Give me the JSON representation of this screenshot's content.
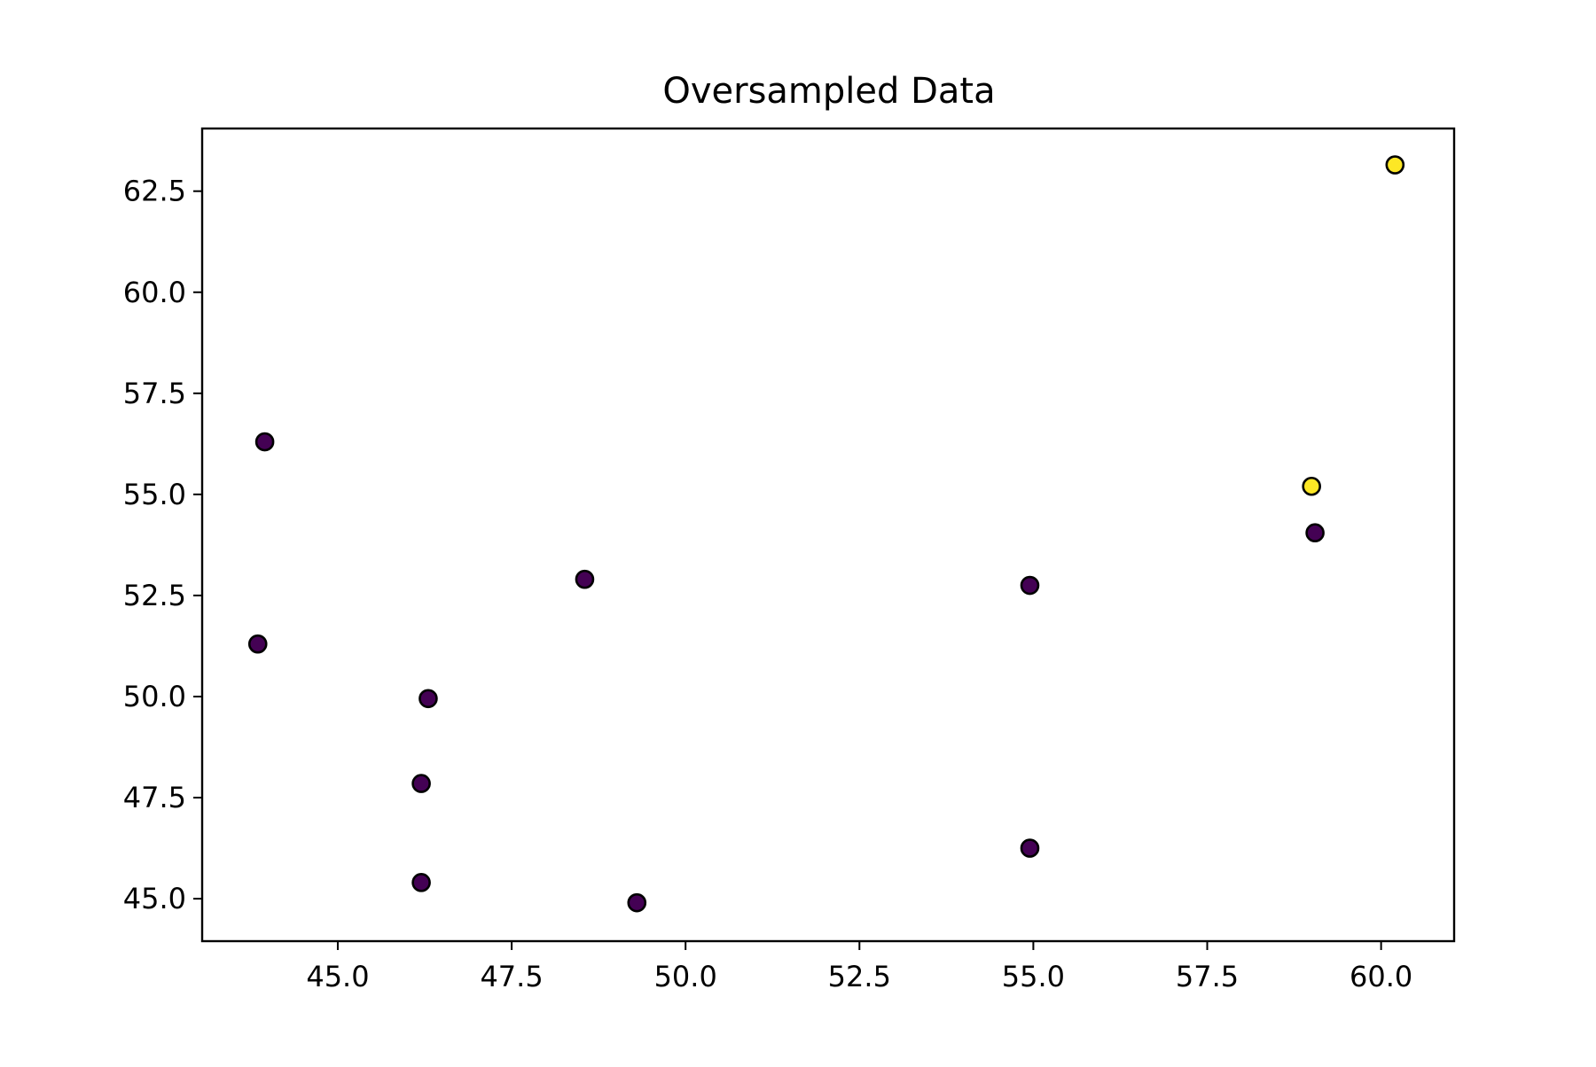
{
  "chart_data": {
    "type": "scatter",
    "title": "Oversampled Data",
    "xlabel": "",
    "ylabel": "",
    "xlim": [
      43.05,
      61.05
    ],
    "ylim": [
      43.95,
      64.05
    ],
    "x_ticks": [
      "45.0",
      "47.5",
      "50.0",
      "52.5",
      "55.0",
      "57.5",
      "60.0"
    ],
    "y_ticks": [
      "45.0",
      "47.5",
      "50.0",
      "52.5",
      "55.0",
      "57.5",
      "60.0",
      "62.5"
    ],
    "grid": false,
    "legend": "none",
    "class_colors": {
      "0": "#440154",
      "1": "#fde725"
    },
    "points": [
      {
        "x": 43.95,
        "y": 56.3,
        "class": 0
      },
      {
        "x": 43.85,
        "y": 51.3,
        "class": 0
      },
      {
        "x": 46.3,
        "y": 49.95,
        "class": 0
      },
      {
        "x": 46.2,
        "y": 47.85,
        "class": 0
      },
      {
        "x": 46.2,
        "y": 45.4,
        "class": 0
      },
      {
        "x": 48.55,
        "y": 52.9,
        "class": 0
      },
      {
        "x": 49.3,
        "y": 44.9,
        "class": 0
      },
      {
        "x": 54.95,
        "y": 52.75,
        "class": 0
      },
      {
        "x": 54.95,
        "y": 46.25,
        "class": 0
      },
      {
        "x": 59.05,
        "y": 54.05,
        "class": 0
      },
      {
        "x": 59.0,
        "y": 55.2,
        "class": 1
      },
      {
        "x": 60.2,
        "y": 63.15,
        "class": 1
      }
    ]
  }
}
